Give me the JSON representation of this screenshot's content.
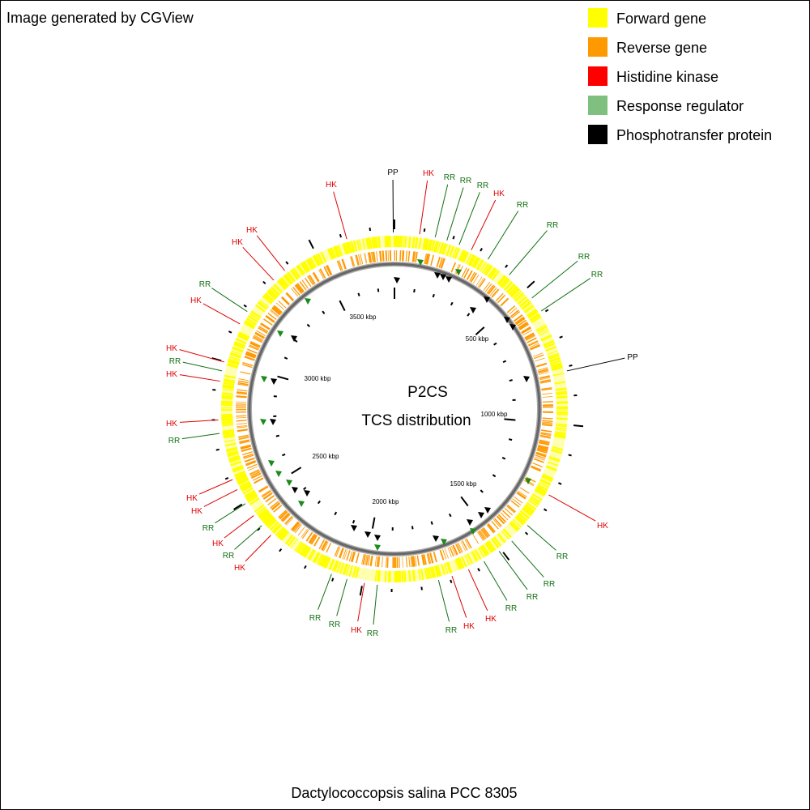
{
  "header": {
    "credit": "Image generated by CGView"
  },
  "legend": [
    {
      "label": "Forward gene",
      "color": "#ffff00"
    },
    {
      "label": "Reverse gene",
      "color": "#ff9900"
    },
    {
      "label": "Histidine kinase",
      "color": "#ff0000"
    },
    {
      "label": "Response regulator",
      "color": "#7fbf7f"
    },
    {
      "label": "Phosphotransfer protein",
      "color": "#000000"
    }
  ],
  "map": {
    "title": "P2CS",
    "subtitle": "TCS distribution",
    "feature_colors": {
      "HK": "#e00000",
      "RR": "#107010",
      "PP": "#000000"
    },
    "scale_labels": [
      "500 kbp",
      "1000 kbp",
      "1500 kbp",
      "2000 kbp",
      "2500 kbp",
      "3000 kbp",
      "3500 kbp"
    ],
    "features": [
      "PP",
      "HK",
      "RR",
      "RR",
      "RR",
      "HK",
      "RR",
      "RR",
      "RR",
      "RR",
      "PP",
      "HK",
      "RR",
      "RR",
      "RR",
      "RR",
      "HK",
      "HK",
      "RR",
      "RR",
      "HK",
      "RR",
      "RR",
      "HK",
      "RR",
      "HK",
      "RR",
      "HK",
      "HK",
      "RR",
      "HK",
      "HK",
      "RR",
      "HK",
      "HK",
      "RR",
      "HK",
      "HK",
      "HK"
    ]
  },
  "footer": {
    "organism": "Dactylococcopsis salina PCC 8305"
  }
}
